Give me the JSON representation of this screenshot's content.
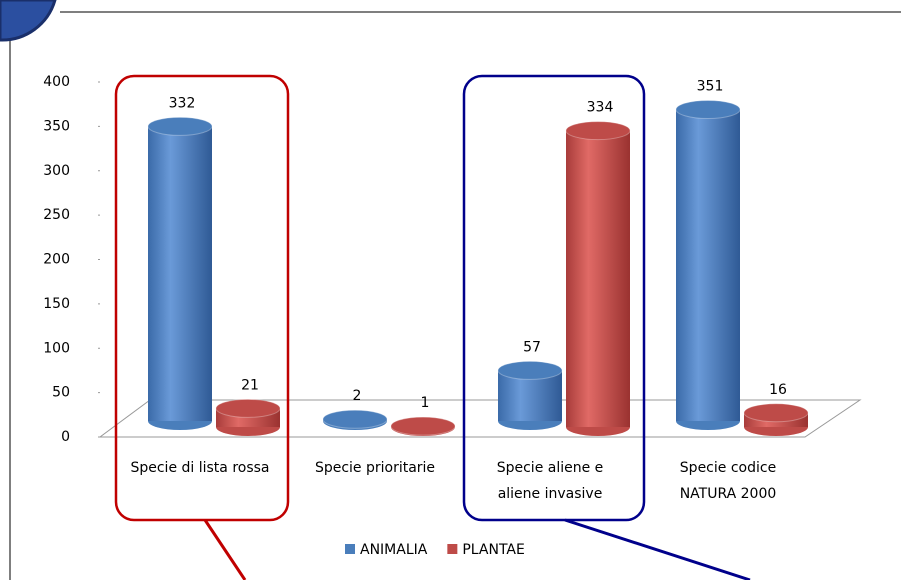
{
  "chart_data": {
    "type": "bar",
    "categories": [
      "Specie di lista rossa",
      "Specie prioritarie",
      "Specie aliene e aliene invasive",
      "Specie codice NATURA 2000"
    ],
    "series": [
      {
        "name": "ANIMALIA",
        "color": "#4a7ebb",
        "values": [
          332,
          2,
          57,
          351
        ]
      },
      {
        "name": "PLANTAE",
        "color": "#be4b48",
        "values": [
          21,
          1,
          334,
          16
        ]
      }
    ],
    "ylim": [
      0,
      400
    ],
    "yticks": [
      0,
      50,
      100,
      150,
      200,
      250,
      300,
      350,
      400
    ],
    "legend": "bottom"
  }
}
